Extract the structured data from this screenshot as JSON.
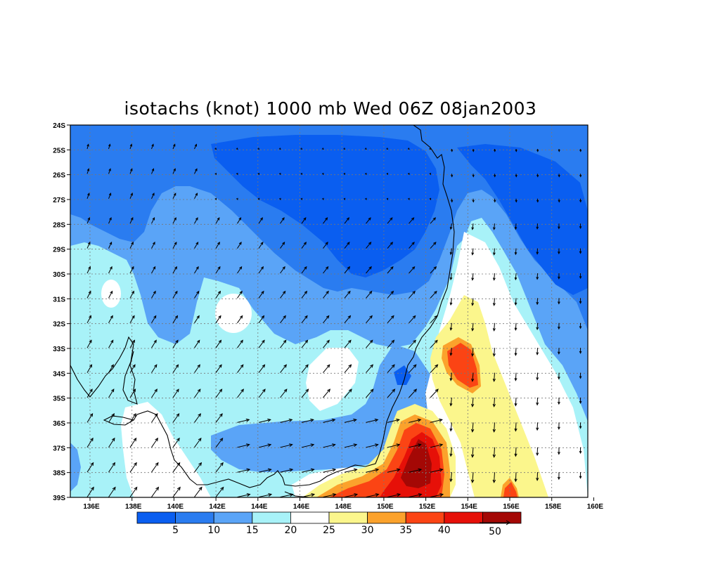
{
  "title": "isotachs (knot) 1000 mb Wed 06Z 08jan2003",
  "y_ticks": [
    "24S",
    "25S",
    "26S",
    "27S",
    "28S",
    "29S",
    "30S",
    "31S",
    "32S",
    "33S",
    "34S",
    "35S",
    "36S",
    "37S",
    "38S",
    "39S"
  ],
  "x_ticks": [
    "136E",
    "138E",
    "140E",
    "142E",
    "144E",
    "146E",
    "148E",
    "150E",
    "152E",
    "154E",
    "156E",
    "158E",
    "160E"
  ],
  "colorbar": {
    "colors": [
      "#0a5ef0",
      "#2a7cf0",
      "#5aa4f7",
      "#a8f2f8",
      "#ffffff",
      "#fbf68c",
      "#fba22c",
      "#fb4414",
      "#e61008",
      "#a40805"
    ],
    "labels": [
      "5",
      "10",
      "15",
      "20",
      "25",
      "30",
      "35",
      "40"
    ],
    "vector_ref": "50"
  },
  "palette": {
    "c1": "#0a5ef0",
    "c2": "#2a7cf0",
    "c3": "#5aa4f7",
    "c4": "#a8f2f8",
    "c5": "#ffffff",
    "c6": "#fbf68c",
    "c7": "#fba22c",
    "c8": "#fb4414",
    "c9": "#e61008",
    "c10": "#a40805"
  }
}
